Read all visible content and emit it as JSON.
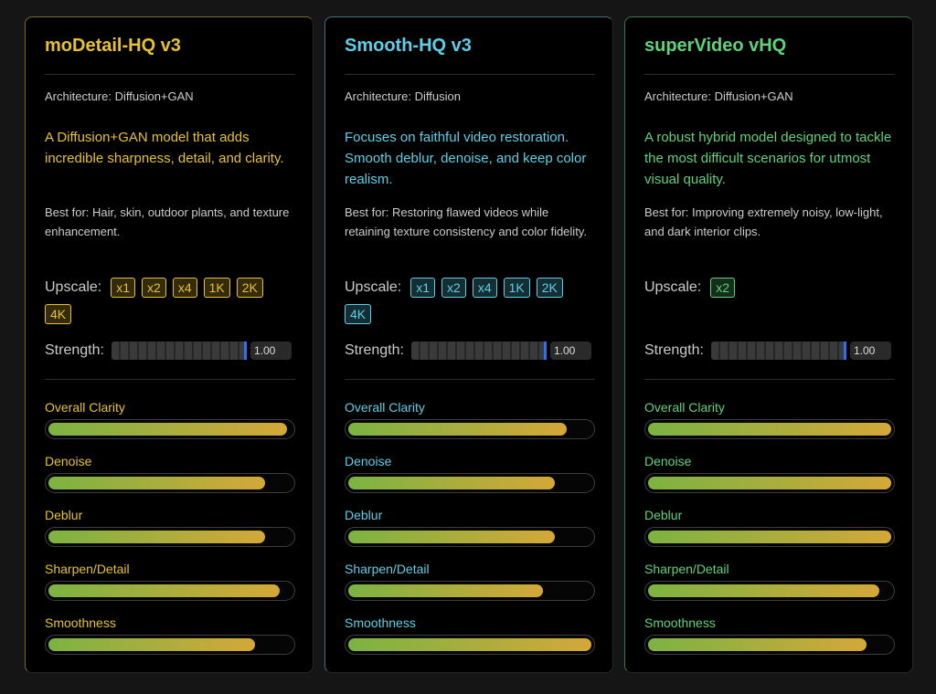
{
  "cards": [
    {
      "title": "moDetail-HQ v3",
      "accent": "#e6c232",
      "architecture": "Architecture: Diffusion+GAN",
      "description": "A Diffusion+GAN model that adds incredible sharpness, detail, and clarity.",
      "best_for": "Best for: Hair, skin, outdoor plants, and texture enhancement.",
      "upscale_label": "Upscale:",
      "upscale_options": [
        "x1",
        "x2",
        "x4",
        "1K",
        "2K",
        "4K"
      ],
      "strength_label": "Strength:",
      "strength_value": "1.00",
      "metrics": [
        {
          "name": "Overall Clarity",
          "value": 0.98
        },
        {
          "name": "Denoise",
          "value": 0.89
        },
        {
          "name": "Deblur",
          "value": 0.89
        },
        {
          "name": "Sharpen/Detail",
          "value": 0.95
        },
        {
          "name": "Smoothness",
          "value": 0.85
        }
      ]
    },
    {
      "title": "Smooth-HQ v3",
      "accent": "#5ecfe6",
      "architecture": "Architecture: Diffusion",
      "description": "Focuses on faithful video restoration. Smooth deblur, denoise, and keep color realism.",
      "best_for": "Best for: Restoring flawed videos while retaining texture consistency and color fidelity.",
      "upscale_label": "Upscale:",
      "upscale_options": [
        "x1",
        "x2",
        "x4",
        "1K",
        "2K",
        "4K"
      ],
      "strength_label": "Strength:",
      "strength_value": "1.00",
      "metrics": [
        {
          "name": "Overall Clarity",
          "value": 0.9
        },
        {
          "name": "Denoise",
          "value": 0.85
        },
        {
          "name": "Deblur",
          "value": 0.85
        },
        {
          "name": "Sharpen/Detail",
          "value": 0.8
        },
        {
          "name": "Smoothness",
          "value": 1.0
        }
      ]
    },
    {
      "title": "superVideo vHQ",
      "accent": "#5fd27a",
      "architecture": "Architecture: Diffusion+GAN",
      "description": "A robust hybrid model designed to tackle the most difficult scenarios for utmost visual quality.",
      "best_for": "Best for: Improving extremely noisy, low-light, and dark interior clips.",
      "upscale_label": "Upscale:",
      "upscale_options": [
        "x2"
      ],
      "strength_label": "Strength:",
      "strength_value": "1.00",
      "metrics": [
        {
          "name": "Overall Clarity",
          "value": 1.0
        },
        {
          "name": "Denoise",
          "value": 1.0
        },
        {
          "name": "Deblur",
          "value": 1.0
        },
        {
          "name": "Sharpen/Detail",
          "value": 0.95
        },
        {
          "name": "Smoothness",
          "value": 0.9
        }
      ]
    }
  ]
}
